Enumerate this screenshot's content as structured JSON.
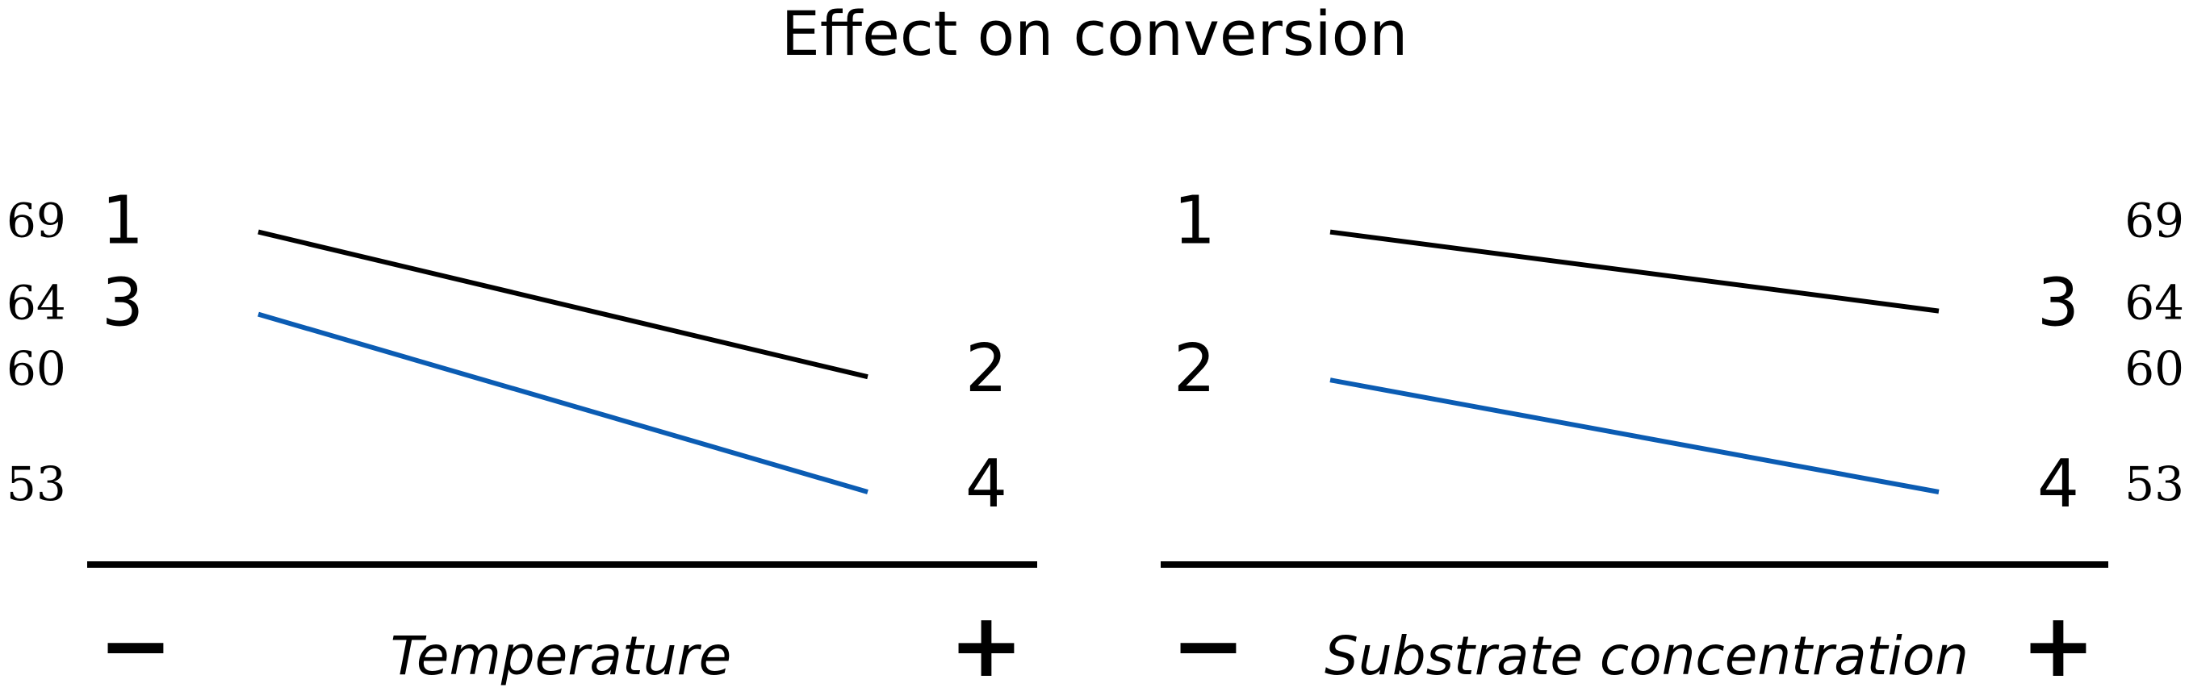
{
  "chart_data": {
    "type": "line",
    "title": "Effect on conversion",
    "y_ticks": [
      "69",
      "64",
      "60",
      "53"
    ],
    "colors": {
      "black": "#000000",
      "blue": "#0b5cb3"
    },
    "panels": [
      {
        "xlabel": "Temperature",
        "low_label": "−",
        "high_label": "+",
        "x": [
          "−",
          "+"
        ],
        "series": [
          {
            "color": "#000000",
            "values": [
              69,
              60
            ],
            "labels": [
              "1",
              "2"
            ]
          },
          {
            "color": "#0b5cb3",
            "values": [
              64,
              53
            ],
            "labels": [
              "3",
              "4"
            ]
          }
        ]
      },
      {
        "xlabel": "Substrate concentration",
        "low_label": "−",
        "high_label": "+",
        "x": [
          "−",
          "+"
        ],
        "series": [
          {
            "color": "#000000",
            "values": [
              69,
              64
            ],
            "labels": [
              "1",
              "3"
            ]
          },
          {
            "color": "#0b5cb3",
            "values": [
              60,
              53
            ],
            "labels": [
              "2",
              "4"
            ]
          }
        ]
      }
    ]
  }
}
